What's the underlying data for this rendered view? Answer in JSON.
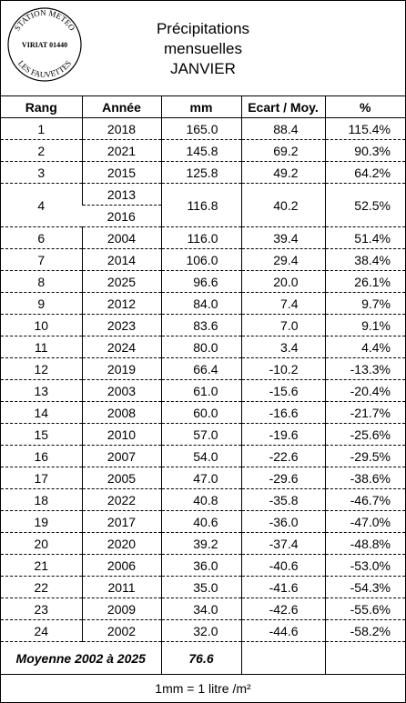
{
  "header": {
    "stamp": {
      "top": "STATION METEO",
      "middle": "VIRIAT 01440",
      "bottom": "LES FAUVETTES"
    },
    "title": [
      "Précipitations",
      "mensuelles",
      "JANVIER"
    ]
  },
  "table": {
    "columns": [
      "Rang",
      "Année",
      "mm",
      "Ecart / Moy.",
      "%"
    ],
    "rows": [
      {
        "rank": "1",
        "years": [
          "2018"
        ],
        "mm": "165.0",
        "ecart": "88.4",
        "pct": "115.4%"
      },
      {
        "rank": "2",
        "years": [
          "2021"
        ],
        "mm": "145.8",
        "ecart": "69.2",
        "pct": "90.3%"
      },
      {
        "rank": "3",
        "years": [
          "2015"
        ],
        "mm": "125.8",
        "ecart": "49.2",
        "pct": "64.2%"
      },
      {
        "rank": "4",
        "years": [
          "2013",
          "2016"
        ],
        "mm": "116.8",
        "ecart": "40.2",
        "pct": "52.5%"
      },
      {
        "rank": "6",
        "years": [
          "2004"
        ],
        "mm": "116.0",
        "ecart": "39.4",
        "pct": "51.4%"
      },
      {
        "rank": "7",
        "years": [
          "2014"
        ],
        "mm": "106.0",
        "ecart": "29.4",
        "pct": "38.4%"
      },
      {
        "rank": "8",
        "years": [
          "2025"
        ],
        "mm": "96.6",
        "ecart": "20.0",
        "pct": "26.1%"
      },
      {
        "rank": "9",
        "years": [
          "2012"
        ],
        "mm": "84.0",
        "ecart": "7.4",
        "pct": "9.7%"
      },
      {
        "rank": "10",
        "years": [
          "2023"
        ],
        "mm": "83.6",
        "ecart": "7.0",
        "pct": "9.1%"
      },
      {
        "rank": "11",
        "years": [
          "2024"
        ],
        "mm": "80.0",
        "ecart": "3.4",
        "pct": "4.4%"
      },
      {
        "rank": "12",
        "years": [
          "2019"
        ],
        "mm": "66.4",
        "ecart": "-10.2",
        "pct": "-13.3%"
      },
      {
        "rank": "13",
        "years": [
          "2003"
        ],
        "mm": "61.0",
        "ecart": "-15.6",
        "pct": "-20.4%"
      },
      {
        "rank": "14",
        "years": [
          "2008"
        ],
        "mm": "60.0",
        "ecart": "-16.6",
        "pct": "-21.7%"
      },
      {
        "rank": "15",
        "years": [
          "2010"
        ],
        "mm": "57.0",
        "ecart": "-19.6",
        "pct": "-25.6%"
      },
      {
        "rank": "16",
        "years": [
          "2007"
        ],
        "mm": "54.0",
        "ecart": "-22.6",
        "pct": "-29.5%"
      },
      {
        "rank": "17",
        "years": [
          "2005"
        ],
        "mm": "47.0",
        "ecart": "-29.6",
        "pct": "-38.6%"
      },
      {
        "rank": "18",
        "years": [
          "2022"
        ],
        "mm": "40.8",
        "ecart": "-35.8",
        "pct": "-46.7%"
      },
      {
        "rank": "19",
        "years": [
          "2017"
        ],
        "mm": "40.6",
        "ecart": "-36.0",
        "pct": "-47.0%"
      },
      {
        "rank": "20",
        "years": [
          "2020"
        ],
        "mm": "39.2",
        "ecart": "-37.4",
        "pct": "-48.8%"
      },
      {
        "rank": "21",
        "years": [
          "2006"
        ],
        "mm": "36.0",
        "ecart": "-40.6",
        "pct": "-53.0%"
      },
      {
        "rank": "22",
        "years": [
          "2011"
        ],
        "mm": "35.0",
        "ecart": "-41.6",
        "pct": "-54.3%"
      },
      {
        "rank": "23",
        "years": [
          "2009"
        ],
        "mm": "34.0",
        "ecart": "-42.6",
        "pct": "-55.6%"
      },
      {
        "rank": "24",
        "years": [
          "2002"
        ],
        "mm": "32.0",
        "ecart": "-44.6",
        "pct": "-58.2%"
      }
    ],
    "average": {
      "label": "Moyenne 2002 à 2025",
      "mm": "76.6"
    }
  },
  "footer": "1mm = 1 litre /m²"
}
